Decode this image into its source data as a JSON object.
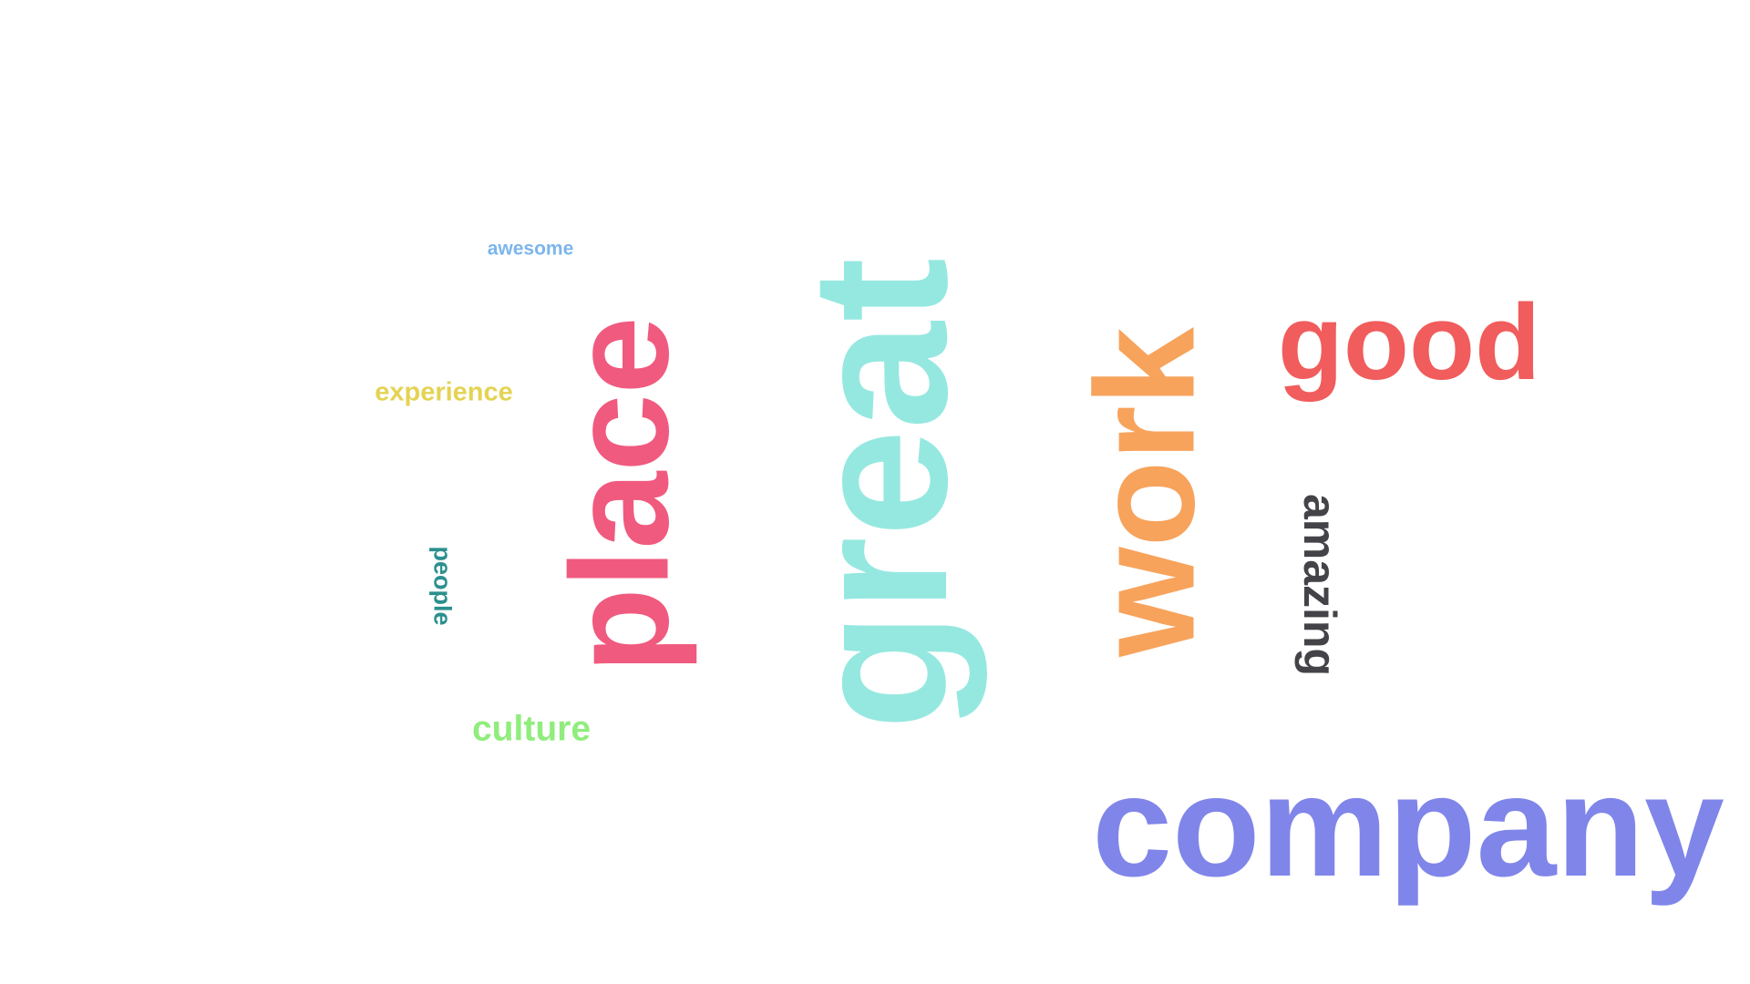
{
  "word_cloud": {
    "words": [
      {
        "text": "great",
        "color": "#95E8E0",
        "orientation": "rotated-ccw"
      },
      {
        "text": "place",
        "color": "#F05A7E",
        "orientation": "rotated-ccw"
      },
      {
        "text": "work",
        "color": "#F7A35C",
        "orientation": "rotated-ccw"
      },
      {
        "text": "company",
        "color": "#8085E9",
        "orientation": "horizontal"
      },
      {
        "text": "good",
        "color": "#F15C5C",
        "orientation": "horizontal"
      },
      {
        "text": "amazing",
        "color": "#434348",
        "orientation": "rotated-cw"
      },
      {
        "text": "culture",
        "color": "#90ED7D",
        "orientation": "horizontal"
      },
      {
        "text": "experience",
        "color": "#E4D354",
        "orientation": "horizontal"
      },
      {
        "text": "people",
        "color": "#2B908F",
        "orientation": "rotated-cw"
      },
      {
        "text": "awesome",
        "color": "#7CB5EC",
        "orientation": "horizontal"
      }
    ]
  }
}
